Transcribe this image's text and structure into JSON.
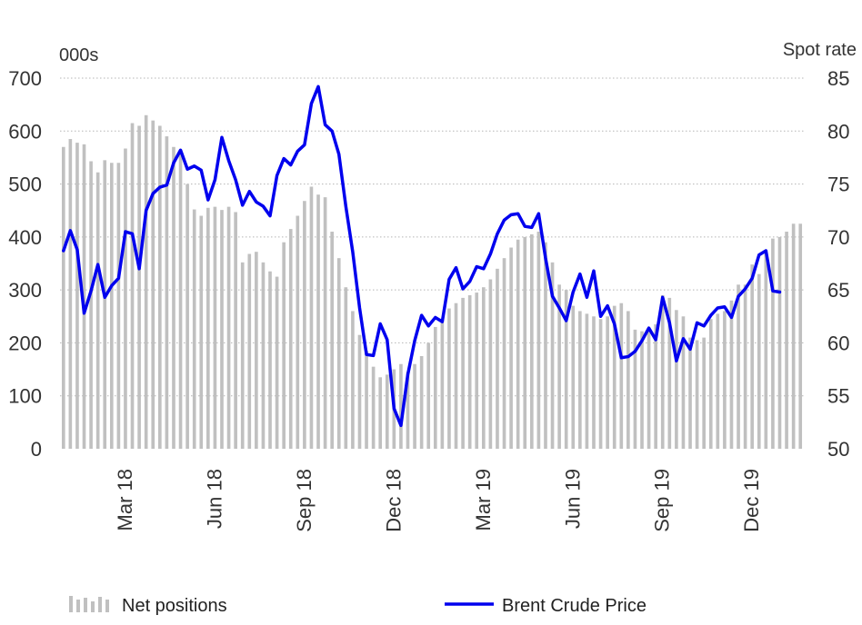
{
  "chart_data": {
    "type": "bar+line",
    "left_unit": "000s",
    "right_unit": "Spot rate",
    "y_left": {
      "range": [
        0,
        700
      ],
      "ticks": [
        0,
        100,
        200,
        300,
        400,
        500,
        600,
        700
      ]
    },
    "y_right": {
      "range": [
        50,
        85
      ],
      "ticks": [
        50,
        55,
        60,
        65,
        70,
        75,
        80,
        85
      ]
    },
    "x_labels": [
      "Mar 18",
      "Jun 18",
      "Sep 18",
      "Dec 18",
      "Mar 19",
      "Jun 19",
      "Sep 19",
      "Dec 19"
    ],
    "x_label_week_index": [
      9,
      22,
      35,
      48,
      61,
      74,
      87,
      100
    ],
    "grid": "horizontal dotted",
    "legend_position": "bottom",
    "series": [
      {
        "name": "Net positions",
        "type": "bar",
        "axis": "left",
        "color": "#c0c0c0",
        "values": [
          570,
          585,
          578,
          575,
          543,
          522,
          545,
          540,
          540,
          567,
          615,
          610,
          630,
          620,
          610,
          590,
          570,
          560,
          500,
          452,
          440,
          455,
          457,
          451,
          457,
          447,
          352,
          368,
          372,
          352,
          335,
          325,
          390,
          415,
          440,
          468,
          495,
          480,
          475,
          410,
          360,
          305,
          260,
          215,
          185,
          155,
          135,
          140,
          150,
          160,
          145,
          160,
          175,
          200,
          230,
          245,
          265,
          275,
          285,
          290,
          295,
          305,
          320,
          340,
          360,
          380,
          395,
          400,
          405,
          410,
          390,
          352,
          310,
          300,
          270,
          260,
          255,
          250,
          245,
          250,
          270,
          275,
          260,
          225,
          222,
          225,
          235,
          290,
          285,
          262,
          250,
          210,
          205,
          210,
          245,
          255,
          260,
          280,
          310,
          310,
          348,
          330,
          375,
          397,
          400,
          410,
          425,
          425
        ]
      },
      {
        "name": "Brent Crude Price",
        "type": "line",
        "axis": "right",
        "color": "#0000ee",
        "values": [
          68.7,
          70.6,
          68.8,
          62.8,
          64.9,
          67.4,
          64.3,
          65.4,
          66.1,
          70.5,
          70.3,
          67.0,
          72.5,
          74.1,
          74.7,
          74.9,
          77.0,
          78.2,
          76.4,
          76.7,
          76.3,
          73.5,
          75.4,
          79.4,
          77.2,
          75.4,
          73.0,
          74.3,
          73.3,
          72.9,
          72.0,
          75.8,
          77.4,
          76.8,
          78.1,
          78.7,
          82.6,
          84.2,
          80.6,
          80.0,
          77.8,
          72.9,
          68.6,
          63.3,
          58.9,
          58.8,
          61.8,
          60.3,
          53.8,
          52.2,
          57.0,
          60.2,
          62.6,
          61.6,
          62.4,
          62.0,
          66.0,
          67.1,
          65.1,
          65.8,
          67.2,
          67.0,
          68.4,
          70.3,
          71.6,
          72.1,
          72.2,
          71.0,
          70.9,
          72.2,
          68.0,
          64.4,
          63.3,
          62.1,
          64.8,
          66.5,
          64.3,
          66.8,
          62.5,
          63.5,
          61.8,
          58.6,
          58.7,
          59.2,
          60.2,
          61.4,
          60.3,
          64.3,
          61.9,
          58.3,
          60.4,
          59.4,
          61.9,
          61.6,
          62.6,
          63.3,
          63.4,
          62.4,
          64.4,
          65.1,
          66.1,
          68.3,
          68.7,
          64.9,
          64.8
        ]
      }
    ]
  }
}
